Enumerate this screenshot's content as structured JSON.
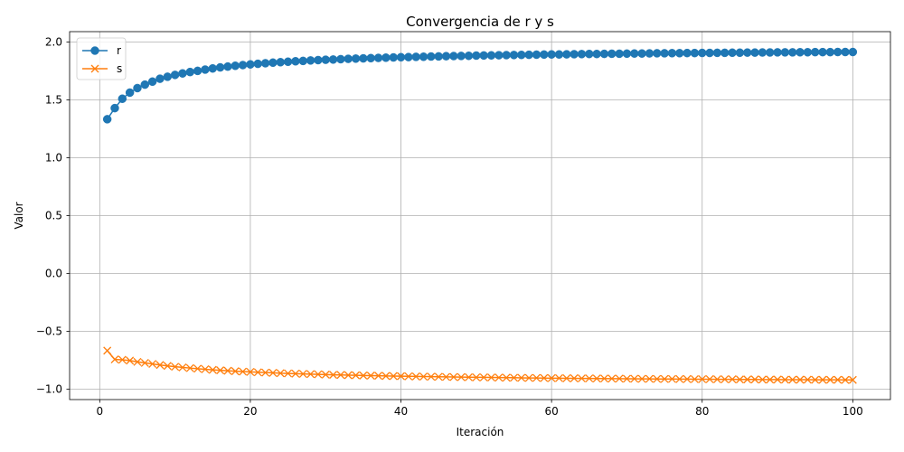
{
  "chart_data": {
    "type": "line",
    "title": "Convergencia de r y s",
    "xlabel": "Iteración",
    "ylabel": "Valor",
    "xlim": [
      -4,
      105
    ],
    "ylim": [
      -1.09,
      2.09
    ],
    "xticks": [
      0,
      20,
      40,
      60,
      80,
      100
    ],
    "xtick_labels": [
      "0",
      "20",
      "40",
      "60",
      "80",
      "100"
    ],
    "yticks": [
      -1.0,
      -0.5,
      0.0,
      0.5,
      1.0,
      1.5,
      2.0
    ],
    "ytick_labels": [
      "−1.0",
      "−0.5",
      "0.0",
      "0.5",
      "1.0",
      "1.5",
      "2.0"
    ],
    "grid": true,
    "legend_position": "upper-left",
    "series": [
      {
        "name": "r",
        "color": "#1f77b4",
        "marker": "circle",
        "x": [
          1,
          2,
          3,
          4,
          5,
          6,
          7,
          8,
          9,
          10,
          11,
          12,
          13,
          14,
          15,
          16,
          17,
          18,
          19,
          20,
          21,
          22,
          23,
          24,
          25,
          26,
          27,
          28,
          29,
          30,
          31,
          32,
          33,
          34,
          35,
          36,
          37,
          38,
          39,
          40,
          41,
          42,
          43,
          44,
          45,
          46,
          47,
          48,
          49,
          50,
          51,
          52,
          53,
          54,
          55,
          56,
          57,
          58,
          59,
          60,
          61,
          62,
          63,
          64,
          65,
          66,
          67,
          68,
          69,
          70,
          71,
          72,
          73,
          74,
          75,
          76,
          77,
          78,
          79,
          80,
          81,
          82,
          83,
          84,
          85,
          86,
          87,
          88,
          89,
          90,
          91,
          92,
          93,
          94,
          95,
          96,
          97,
          98,
          99,
          100
        ],
        "values": [
          1.333,
          1.429,
          1.51,
          1.563,
          1.602,
          1.632,
          1.658,
          1.683,
          1.7,
          1.716,
          1.729,
          1.741,
          1.751,
          1.762,
          1.772,
          1.781,
          1.788,
          1.795,
          1.801,
          1.807,
          1.812,
          1.817,
          1.822,
          1.826,
          1.83,
          1.834,
          1.837,
          1.841,
          1.844,
          1.847,
          1.849,
          1.852,
          1.855,
          1.857,
          1.859,
          1.861,
          1.863,
          1.865,
          1.867,
          1.869,
          1.87,
          1.872,
          1.873,
          1.875,
          1.876,
          1.878,
          1.879,
          1.88,
          1.881,
          1.883,
          1.884,
          1.885,
          1.886,
          1.887,
          1.888,
          1.889,
          1.89,
          1.891,
          1.892,
          1.893,
          1.893,
          1.894,
          1.895,
          1.896,
          1.897,
          1.897,
          1.898,
          1.899,
          1.899,
          1.9,
          1.901,
          1.901,
          1.902,
          1.903,
          1.903,
          1.904,
          1.904,
          1.905,
          1.905,
          1.906,
          1.906,
          1.907,
          1.907,
          1.908,
          1.908,
          1.909,
          1.909,
          1.91,
          1.91,
          1.911,
          1.911,
          1.911,
          1.912,
          1.912,
          1.913,
          1.913,
          1.913,
          1.914,
          1.914,
          1.914
        ]
      },
      {
        "name": "s",
        "color": "#ff7f0e",
        "marker": "x",
        "x": [
          1,
          2,
          3,
          4,
          5,
          6,
          7,
          8,
          9,
          10,
          11,
          12,
          13,
          14,
          15,
          16,
          17,
          18,
          19,
          20,
          21,
          22,
          23,
          24,
          25,
          26,
          27,
          28,
          29,
          30,
          31,
          32,
          33,
          34,
          35,
          36,
          37,
          38,
          39,
          40,
          41,
          42,
          43,
          44,
          45,
          46,
          47,
          48,
          49,
          50,
          51,
          52,
          53,
          54,
          55,
          56,
          57,
          58,
          59,
          60,
          61,
          62,
          63,
          64,
          65,
          66,
          67,
          68,
          69,
          70,
          71,
          72,
          73,
          74,
          75,
          76,
          77,
          78,
          79,
          80,
          81,
          82,
          83,
          84,
          85,
          86,
          87,
          88,
          89,
          90,
          91,
          92,
          93,
          94,
          95,
          96,
          97,
          98,
          99,
          100
        ],
        "values": [
          -0.667,
          -0.743,
          -0.746,
          -0.753,
          -0.764,
          -0.773,
          -0.782,
          -0.791,
          -0.799,
          -0.806,
          -0.812,
          -0.818,
          -0.823,
          -0.828,
          -0.833,
          -0.837,
          -0.841,
          -0.845,
          -0.848,
          -0.851,
          -0.854,
          -0.857,
          -0.859,
          -0.862,
          -0.864,
          -0.866,
          -0.868,
          -0.87,
          -0.872,
          -0.874,
          -0.876,
          -0.877,
          -0.879,
          -0.88,
          -0.882,
          -0.883,
          -0.884,
          -0.886,
          -0.887,
          -0.888,
          -0.889,
          -0.89,
          -0.891,
          -0.892,
          -0.893,
          -0.894,
          -0.895,
          -0.896,
          -0.897,
          -0.898,
          -0.898,
          -0.899,
          -0.9,
          -0.901,
          -0.901,
          -0.902,
          -0.903,
          -0.903,
          -0.904,
          -0.905,
          -0.905,
          -0.906,
          -0.906,
          -0.907,
          -0.907,
          -0.908,
          -0.908,
          -0.909,
          -0.909,
          -0.91,
          -0.91,
          -0.911,
          -0.911,
          -0.912,
          -0.912,
          -0.912,
          -0.913,
          -0.913,
          -0.914,
          -0.914,
          -0.914,
          -0.915,
          -0.915,
          -0.915,
          -0.916,
          -0.916,
          -0.916,
          -0.917,
          -0.917,
          -0.917,
          -0.918,
          -0.918,
          -0.918,
          -0.918,
          -0.919,
          -0.919,
          -0.919,
          -0.919,
          -0.92,
          -0.92
        ]
      }
    ]
  }
}
